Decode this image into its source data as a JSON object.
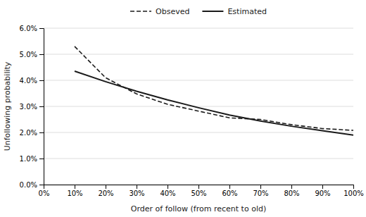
{
  "chart_data": {
    "type": "line",
    "title": "",
    "x_label": "Order of follow (from recent to old)",
    "y_label": "Unfollowing probability",
    "x": [
      0.1,
      0.2,
      0.3,
      0.4,
      0.5,
      0.6,
      0.7,
      0.8,
      0.9,
      1.0
    ],
    "series": [
      {
        "name": "Obseved",
        "color": "#1a1a1a",
        "line_style": "dashed",
        "values": [
          0.053,
          0.041,
          0.0348,
          0.0308,
          0.0282,
          0.0256,
          0.025,
          0.023,
          0.0215,
          0.0208
        ]
      },
      {
        "name": "Estimated",
        "color": "#1a1a1a",
        "line_style": "solid",
        "values": [
          0.0435,
          0.0395,
          0.0358,
          0.0325,
          0.0295,
          0.0267,
          0.0244,
          0.0224,
          0.0207,
          0.019
        ]
      }
    ],
    "xlim": [
      0.0,
      1.0
    ],
    "ylim": [
      0.0,
      0.06
    ],
    "xticks": [
      {
        "value": 0.0,
        "label": "0%"
      },
      {
        "value": 0.1,
        "label": "10%"
      },
      {
        "value": 0.2,
        "label": "20%"
      },
      {
        "value": 0.3,
        "label": "30%"
      },
      {
        "value": 0.4,
        "label": "40%"
      },
      {
        "value": 0.5,
        "label": "50%"
      },
      {
        "value": 0.6,
        "label": "60%"
      },
      {
        "value": 0.7,
        "label": "70%"
      },
      {
        "value": 0.8,
        "label": "80%"
      },
      {
        "value": 0.9,
        "label": "90%"
      },
      {
        "value": 1.0,
        "label": "100%"
      }
    ],
    "yticks": [
      {
        "value": 0.0,
        "label": "0.0%"
      },
      {
        "value": 0.01,
        "label": "1.0%"
      },
      {
        "value": 0.02,
        "label": "2.0%"
      },
      {
        "value": 0.03,
        "label": "3.0%"
      },
      {
        "value": 0.04,
        "label": "4.0%"
      },
      {
        "value": 0.05,
        "label": "5.0%"
      },
      {
        "value": 0.06,
        "label": "6.0%"
      }
    ],
    "grid": "y",
    "legend": "top"
  }
}
